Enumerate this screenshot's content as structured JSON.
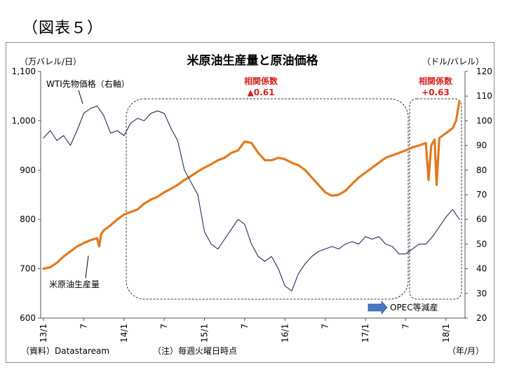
{
  "figure_label": "（図表５）",
  "chart_data": {
    "type": "line",
    "title": "米原油生産量と原油価格",
    "left_unit": "（万バレル/日）",
    "right_unit": "（ドル/バレル）",
    "x_unit": "（年/月）",
    "source": "（資料）Datastaream",
    "note": "（注）毎週火曜日時点",
    "left_axis": {
      "min": 600,
      "max": 1100,
      "ticks": [
        "600",
        "700",
        "800",
        "900",
        "1,000",
        "1,100"
      ]
    },
    "right_axis": {
      "min": 20,
      "max": 120,
      "ticks": [
        "20",
        "30",
        "40",
        "50",
        "60",
        "70",
        "80",
        "90",
        "100",
        "110",
        "120"
      ]
    },
    "x_axis": {
      "min": 0,
      "max": 62,
      "ticks": [
        {
          "pos": 0,
          "label": "13/1"
        },
        {
          "pos": 6,
          "label": "7"
        },
        {
          "pos": 12,
          "label": "14/1"
        },
        {
          "pos": 18,
          "label": "7"
        },
        {
          "pos": 24,
          "label": "15/1"
        },
        {
          "pos": 30,
          "label": "7"
        },
        {
          "pos": 36,
          "label": "16/1"
        },
        {
          "pos": 42,
          "label": "7"
        },
        {
          "pos": 48,
          "label": "17/1"
        },
        {
          "pos": 54,
          "label": "7"
        },
        {
          "pos": 60,
          "label": "18/1"
        }
      ]
    },
    "series": [
      {
        "name": "米原油生産量",
        "axis": "left",
        "color": "#e07a1f",
        "points": [
          [
            0,
            700
          ],
          [
            1,
            703
          ],
          [
            2,
            712
          ],
          [
            3,
            725
          ],
          [
            4,
            735
          ],
          [
            5,
            745
          ],
          [
            6,
            752
          ],
          [
            7,
            758
          ],
          [
            8,
            762
          ],
          [
            8.3,
            745
          ],
          [
            8.6,
            770
          ],
          [
            9,
            778
          ],
          [
            10,
            788
          ],
          [
            11,
            800
          ],
          [
            12,
            810
          ],
          [
            13,
            815
          ],
          [
            14,
            820
          ],
          [
            15,
            832
          ],
          [
            16,
            840
          ],
          [
            17,
            846
          ],
          [
            18,
            855
          ],
          [
            19,
            862
          ],
          [
            20,
            870
          ],
          [
            21,
            880
          ],
          [
            22,
            888
          ],
          [
            23,
            897
          ],
          [
            24,
            905
          ],
          [
            25,
            912
          ],
          [
            26,
            920
          ],
          [
            27,
            925
          ],
          [
            28,
            935
          ],
          [
            29,
            940
          ],
          [
            30,
            958
          ],
          [
            31,
            955
          ],
          [
            32,
            935
          ],
          [
            33,
            920
          ],
          [
            34,
            920
          ],
          [
            35,
            925
          ],
          [
            36,
            922
          ],
          [
            37,
            915
          ],
          [
            38,
            910
          ],
          [
            39,
            900
          ],
          [
            40,
            885
          ],
          [
            41,
            870
          ],
          [
            42,
            855
          ],
          [
            43,
            848
          ],
          [
            44,
            850
          ],
          [
            45,
            858
          ],
          [
            46,
            872
          ],
          [
            47,
            885
          ],
          [
            48,
            895
          ],
          [
            49,
            905
          ],
          [
            50,
            915
          ],
          [
            51,
            925
          ],
          [
            52,
            930
          ],
          [
            53,
            935
          ],
          [
            54,
            940
          ],
          [
            55,
            946
          ],
          [
            56,
            950
          ],
          [
            57,
            955
          ],
          [
            57.4,
            880
          ],
          [
            57.8,
            950
          ],
          [
            58.3,
            962
          ],
          [
            58.6,
            870
          ],
          [
            59,
            965
          ],
          [
            60,
            975
          ],
          [
            61,
            985
          ],
          [
            61.5,
            1000
          ],
          [
            62,
            1040
          ]
        ]
      },
      {
        "name": "WTI先物価格（右軸）",
        "axis": "right",
        "color": "#1f2d5a",
        "points": [
          [
            0,
            93
          ],
          [
            1,
            96
          ],
          [
            2,
            92
          ],
          [
            3,
            94
          ],
          [
            4,
            90
          ],
          [
            5,
            96
          ],
          [
            6,
            103
          ],
          [
            7,
            105
          ],
          [
            8,
            106
          ],
          [
            9,
            102
          ],
          [
            10,
            95
          ],
          [
            11,
            96
          ],
          [
            12,
            94
          ],
          [
            13,
            99
          ],
          [
            14,
            101
          ],
          [
            15,
            100
          ],
          [
            16,
            103
          ],
          [
            17,
            104
          ],
          [
            18,
            103
          ],
          [
            19,
            97
          ],
          [
            20,
            92
          ],
          [
            21,
            80
          ],
          [
            22,
            75
          ],
          [
            23,
            70
          ],
          [
            24,
            55
          ],
          [
            25,
            50
          ],
          [
            26,
            48
          ],
          [
            27,
            52
          ],
          [
            28,
            56
          ],
          [
            29,
            60
          ],
          [
            30,
            58
          ],
          [
            31,
            50
          ],
          [
            32,
            45
          ],
          [
            33,
            43
          ],
          [
            34,
            45
          ],
          [
            35,
            40
          ],
          [
            36,
            33
          ],
          [
            37,
            31
          ],
          [
            38,
            38
          ],
          [
            39,
            42
          ],
          [
            40,
            45
          ],
          [
            41,
            47
          ],
          [
            42,
            48
          ],
          [
            43,
            49
          ],
          [
            44,
            48
          ],
          [
            45,
            50
          ],
          [
            46,
            51
          ],
          [
            47,
            50
          ],
          [
            48,
            53
          ],
          [
            49,
            52
          ],
          [
            50,
            53
          ],
          [
            51,
            50
          ],
          [
            52,
            49
          ],
          [
            53,
            46
          ],
          [
            54,
            46
          ],
          [
            55,
            48
          ],
          [
            56,
            50
          ],
          [
            57,
            50
          ],
          [
            58,
            53
          ],
          [
            59,
            57
          ],
          [
            60,
            61
          ],
          [
            61,
            64
          ],
          [
            62,
            60
          ]
        ]
      }
    ],
    "annotations": {
      "corr1_label": "相関係数",
      "corr1_value": "▲0.61",
      "corr2_label": "相関係数",
      "corr2_value": "+0.63",
      "opec_label": "OPEC等減産",
      "wti_label": "WTI先物価格（右軸）",
      "prod_label": "米原油生産量"
    }
  }
}
